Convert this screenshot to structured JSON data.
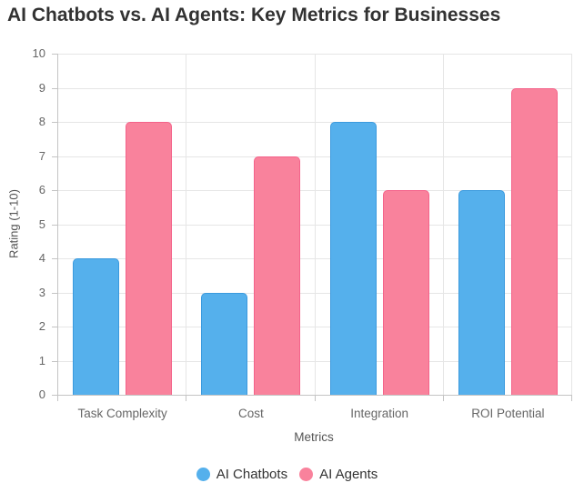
{
  "chart_data": {
    "type": "bar",
    "title": "AI Chatbots vs. AI Agents: Key Metrics for Businesses",
    "xlabel": "Metrics",
    "ylabel": "Rating (1-10)",
    "categories": [
      "Task Complexity",
      "Cost",
      "Integration",
      "ROI Potential"
    ],
    "series": [
      {
        "name": "AI Chatbots",
        "values": [
          4,
          3,
          8,
          6
        ],
        "fill": "#55b0ec",
        "border": "#3b9ade"
      },
      {
        "name": "AI Agents",
        "values": [
          8,
          7,
          6,
          9
        ],
        "fill": "#f9829c",
        "border": "#f4638a"
      }
    ],
    "ylim": [
      0,
      10
    ],
    "yticks": [
      0,
      1,
      2,
      3,
      4,
      5,
      6,
      7,
      8,
      9,
      10
    ],
    "grid": true,
    "legend_position": "bottom",
    "colors": {
      "chatbots": "#55b0ec",
      "agents": "#f9829c",
      "gridline": "#e6e6e6",
      "axis": "#c4c4c4"
    }
  }
}
